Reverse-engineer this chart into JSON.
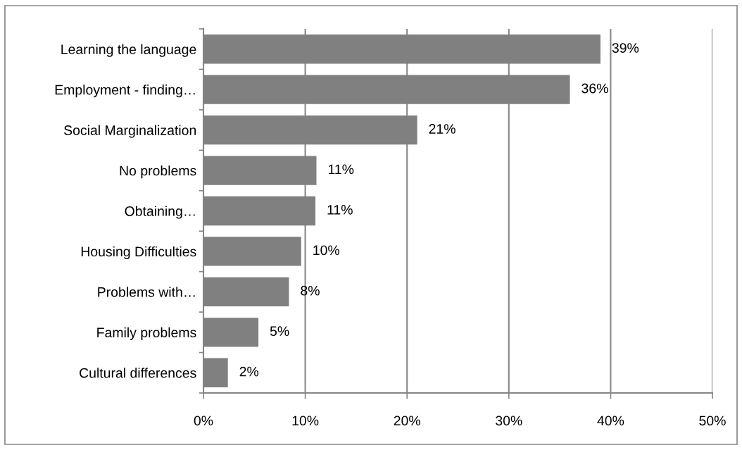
{
  "chart_data": {
    "type": "bar",
    "orientation": "horizontal",
    "categories": [
      "Learning the language",
      "Employment - finding…",
      "Social Marginalization",
      "No problems",
      "Obtaining…",
      "Housing Difficulties",
      "Problems with…",
      "Family problems",
      "Cultural differences"
    ],
    "values": [
      39.0,
      36.0,
      21.0,
      11.1,
      11.0,
      9.6,
      8.4,
      5.4,
      2.4
    ],
    "value_labels": [
      "39%",
      "36%",
      "21%",
      "11%",
      "11%",
      "10%",
      "8%",
      "5%",
      "2%"
    ],
    "color": "#808080",
    "xlim": [
      0,
      50
    ],
    "xticks": [
      {
        "value": 0,
        "label": "0%"
      },
      {
        "value": 10,
        "label": "10%"
      },
      {
        "value": 20,
        "label": "20%"
      },
      {
        "value": 30,
        "label": "30%"
      },
      {
        "value": 40,
        "label": "40%"
      },
      {
        "value": 50,
        "label": "50%"
      }
    ],
    "grid": "x"
  }
}
